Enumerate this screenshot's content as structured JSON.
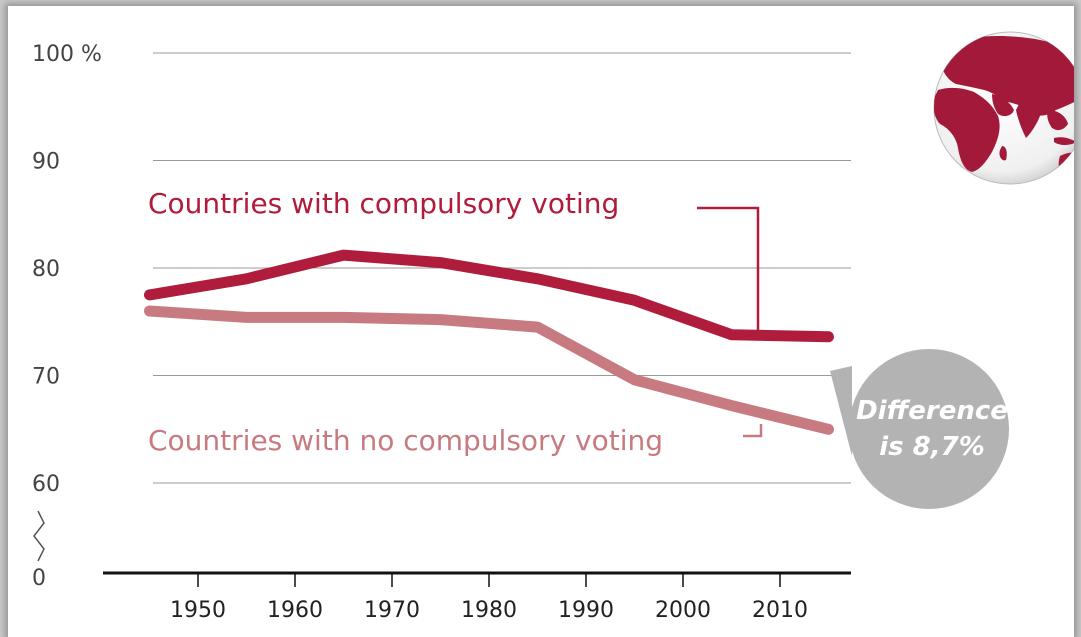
{
  "colors": {
    "compulsory": "#b01c3c",
    "no_compulsory": "#c77a80",
    "callout": "#b3b3b4",
    "grid": "#999999",
    "axis": "#111111"
  },
  "icons": {
    "globe": "globe-icon"
  },
  "chart_data": {
    "type": "line",
    "x": [
      1945,
      1955,
      1965,
      1975,
      1985,
      1995,
      2005,
      2015
    ],
    "series": [
      {
        "name": "Countries with compulsory voting",
        "values": [
          77.5,
          79,
          81.2,
          80.5,
          79,
          77,
          73.8,
          73.6
        ]
      },
      {
        "name": "Countries with no compulsory voting",
        "values": [
          76,
          75.4,
          75.4,
          75.2,
          74.5,
          69.6,
          67.2,
          65
        ]
      }
    ],
    "x_ticks": [
      {
        "value": 1950,
        "label": "1950"
      },
      {
        "value": 1960,
        "label": "1960"
      },
      {
        "value": 1970,
        "label": "1970"
      },
      {
        "value": 1980,
        "label": "1980"
      },
      {
        "value": 1990,
        "label": "1990"
      },
      {
        "value": 2000,
        "label": "2000"
      },
      {
        "value": 2010,
        "label": "2010"
      }
    ],
    "y_ticks": [
      {
        "value": 100,
        "label": "100 %"
      },
      {
        "value": 90,
        "label": "90"
      },
      {
        "value": 80,
        "label": "80"
      },
      {
        "value": 70,
        "label": "70"
      },
      {
        "value": 60,
        "label": "60"
      }
    ],
    "y_zero_label": "0",
    "ylim": [
      60,
      100
    ],
    "y_axis_break": true,
    "grid": true,
    "annotation": {
      "line1": "Difference",
      "line2": "is 8,7%"
    }
  }
}
